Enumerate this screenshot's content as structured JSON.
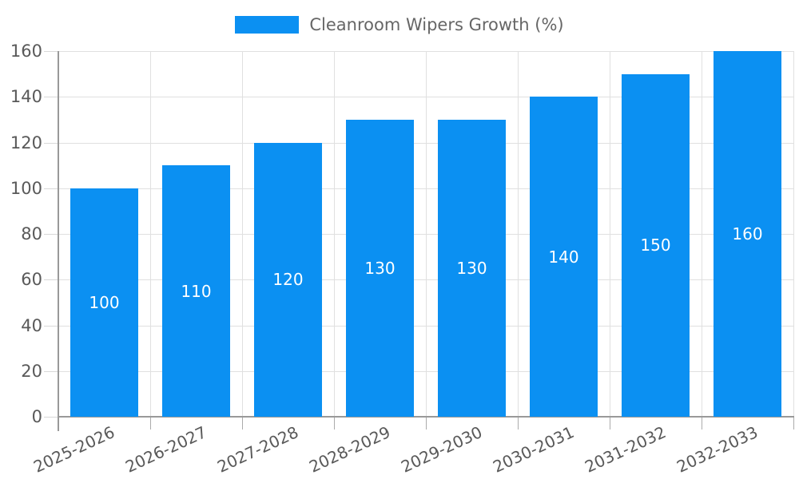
{
  "chart_data": {
    "type": "bar",
    "title": "Cleanroom Wipers Growth (%)",
    "categories": [
      "2025-2026",
      "2026-2027",
      "2027-2028",
      "2028-2029",
      "2029-2030",
      "2030-2031",
      "2031-2032",
      "2032-2033"
    ],
    "series": [
      {
        "name": "Cleanroom Wipers Growth (%)",
        "values": [
          100,
          110,
          120,
          130,
          130,
          140,
          150,
          160
        ]
      }
    ],
    "bar_value_labels": [
      "100",
      "110",
      "120",
      "130",
      "130",
      "140",
      "150",
      "160"
    ],
    "xlabel": "",
    "ylabel": "",
    "ylim": [
      0,
      160
    ],
    "ytick_step": 20,
    "ytick_labels": [
      "0",
      "20",
      "40",
      "60",
      "80",
      "100",
      "120",
      "140",
      "160"
    ],
    "grid": true,
    "legend_position": "top-center",
    "colors": {
      "bar": "#0b90f2",
      "grid": "#e0e0e0",
      "axis": "#999999",
      "y_tick_mark": "#d8d8d8",
      "x_tick_mark": "#ababab",
      "tick_text": "#595959",
      "legend_text": "#666666",
      "bar_label_text": "#ffffff",
      "background": "#ffffff"
    }
  }
}
